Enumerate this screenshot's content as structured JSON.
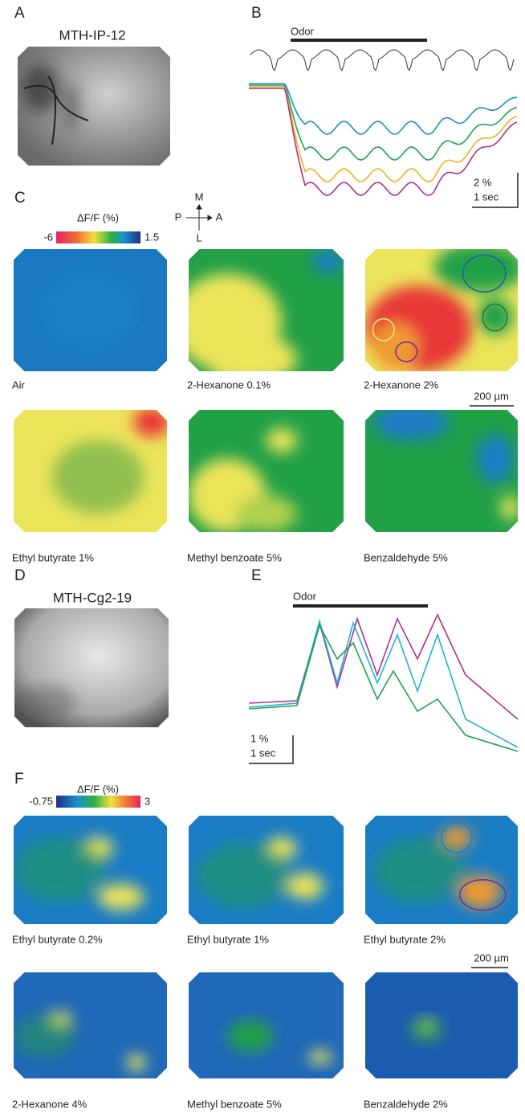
{
  "panel_a": {
    "label": "A",
    "title": "MTH-IP-12"
  },
  "panel_b": {
    "label": "B",
    "stimulus": "Odor",
    "scale_y": "2 %",
    "scale_x": "1 sec"
  },
  "panel_c": {
    "label": "C",
    "colorbar": {
      "title": "ΔF/F (%)",
      "min": -6,
      "max": 1.5
    },
    "orientation": {
      "up": "M",
      "left": "P",
      "right": "A",
      "down": "L"
    },
    "maps": [
      "Air",
      "2-Hexanone 0.1%",
      "2-Hexanone 2%",
      "Ethyl butyrate 1%",
      "Methyl benzoate 5%",
      "Benzaldehyde 5%"
    ],
    "scale_bar": "200 µm"
  },
  "panel_d": {
    "label": "D",
    "title": "MTH-Cg2-19"
  },
  "panel_e": {
    "label": "E",
    "stimulus": "Odor",
    "scale_y": "1 %",
    "scale_x": "1 sec"
  },
  "panel_f": {
    "label": "F",
    "colorbar": {
      "title": "ΔF/F (%)",
      "min": -0.75,
      "max": 3
    },
    "maps": [
      "Ethyl butyrate 0.2%",
      "Ethyl butyrate 1%",
      "Ethyl butyrate 2%",
      "2-Hexanone 4%",
      "Methyl benzoate 5%",
      "Benzaldehyde 2%"
    ],
    "scale_bar": "200 µm"
  }
}
